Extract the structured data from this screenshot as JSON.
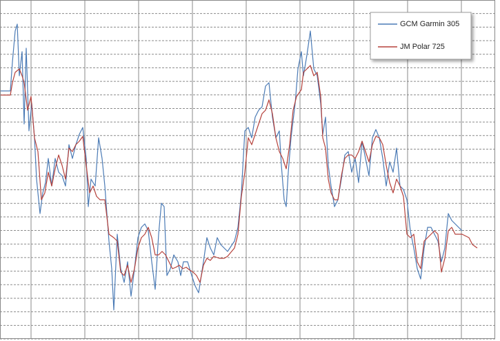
{
  "chart_data": {
    "type": "line",
    "legend": "top-right",
    "grid": true,
    "xlim": [
      0,
      718
    ],
    "xticks": [
      45,
      123,
      201,
      279,
      357,
      435,
      513,
      591,
      669
    ],
    "ylim": [
      0,
      492
    ],
    "yticks": [
      0,
      19.68,
      39.36,
      59.04,
      78.72,
      98.4,
      118.08,
      137.76,
      157.44,
      177.12,
      196.8,
      216.48,
      236.16,
      255.84,
      275.52,
      295.2,
      314.88,
      334.56,
      354.24,
      373.92,
      393.6,
      413.28,
      432.96,
      452.64,
      472.32,
      492
    ],
    "series": [
      {
        "name": "GCM Garmin 305",
        "color": "#4a7ab5",
        "x": [
          0,
          15,
          18,
          22,
          25,
          28,
          32,
          35,
          38,
          42,
          46,
          50,
          53,
          58,
          62,
          66,
          70,
          75,
          80,
          85,
          90,
          95,
          100,
          105,
          110,
          115,
          120,
          125,
          128,
          132,
          138,
          143,
          148,
          152,
          158,
          162,
          165,
          170,
          175,
          180,
          185,
          190,
          195,
          200,
          205,
          210,
          215,
          220,
          225,
          230,
          234,
          238,
          242,
          247,
          252,
          258,
          262,
          266,
          272,
          278,
          283,
          288,
          295,
          300,
          305,
          310,
          315,
          320,
          325,
          330,
          340,
          345,
          350,
          355,
          360,
          365,
          370,
          375,
          380,
          385,
          390,
          395,
          400,
          405,
          408,
          412,
          415,
          418,
          422,
          428,
          432,
          437,
          440,
          445,
          450,
          455,
          460,
          465,
          468,
          472,
          476,
          480,
          485,
          490,
          495,
          500,
          505,
          510,
          515,
          520,
          525,
          530,
          535,
          540,
          545,
          550,
          555,
          560,
          565,
          570,
          575,
          580,
          585,
          590,
          595,
          600,
          605,
          610,
          615,
          620,
          625,
          630,
          635,
          640,
          645,
          650,
          655,
          660,
          665,
          670
        ],
        "values": [
          360,
          360,
          402,
          447,
          457,
          382,
          417,
          312,
          422,
          302,
          342,
          292,
          232,
          182,
          212,
          227,
          262,
          222,
          262,
          242,
          237,
          222,
          282,
          262,
          282,
          297,
          307,
          262,
          192,
          232,
          222,
          292,
          262,
          222,
          142,
          102,
          42,
          152,
          102,
          82,
          112,
          62,
          102,
          147,
          162,
          167,
          157,
          112,
          72,
          152,
          197,
          192,
          92,
          102,
          122,
          112,
          92,
          112,
          112,
          92,
          77,
          67,
          112,
          147,
          132,
          122,
          147,
          137,
          132,
          127,
          142,
          162,
          212,
          302,
          307,
          292,
          322,
          332,
          337,
          367,
          372,
          322,
          292,
          302,
          252,
          202,
          192,
          242,
          292,
          342,
          392,
          417,
          382,
          412,
          447,
          392,
          382,
          342,
          297,
          322,
          252,
          222,
          192,
          202,
          232,
          267,
          272,
          242,
          262,
          227,
          287,
          262,
          237,
          292,
          304,
          292,
          262,
          222,
          257,
          242,
          277,
          222,
          217,
          202,
          157,
          132,
          102,
          87,
          132,
          162,
          162,
          152,
          142,
          112,
          132,
          182,
          172,
          167,
          162,
          157
        ]
      },
      {
        "name": "JM Polar 725",
        "color": "#b5403a",
        "x": [
          0,
          15,
          18,
          22,
          28,
          32,
          35,
          40,
          45,
          50,
          55,
          60,
          65,
          70,
          75,
          80,
          85,
          90,
          95,
          100,
          105,
          110,
          115,
          120,
          125,
          130,
          135,
          140,
          145,
          152,
          158,
          165,
          170,
          175,
          180,
          185,
          190,
          195,
          200,
          205,
          210,
          215,
          220,
          225,
          230,
          235,
          240,
          245,
          250,
          255,
          260,
          265,
          270,
          275,
          280,
          285,
          290,
          295,
          300,
          305,
          310,
          318,
          325,
          330,
          340,
          345,
          350,
          355,
          360,
          365,
          370,
          375,
          380,
          385,
          390,
          395,
          400,
          405,
          410,
          415,
          420,
          425,
          430,
          437,
          440,
          445,
          450,
          455,
          460,
          465,
          468,
          472,
          476,
          480,
          485,
          490,
          495,
          500,
          505,
          510,
          515,
          520,
          525,
          530,
          535,
          540,
          545,
          550,
          555,
          560,
          565,
          570,
          575,
          580,
          585,
          590,
          595,
          600,
          605,
          610,
          615,
          620,
          625,
          630,
          635,
          640,
          645,
          650,
          655,
          660,
          665,
          670,
          680,
          685,
          692
        ],
        "values": [
          354,
          354,
          372,
          387,
          392,
          382,
          372,
          332,
          352,
          292,
          272,
          202,
          212,
          242,
          222,
          247,
          267,
          252,
          232,
          277,
          272,
          282,
          287,
          294,
          252,
          212,
          222,
          207,
          202,
          202,
          152,
          147,
          142,
          97,
          92,
          107,
          82,
          102,
          132,
          147,
          152,
          162,
          147,
          122,
          122,
          127,
          122,
          112,
          102,
          104,
          107,
          102,
          104,
          100,
          97,
          92,
          82,
          107,
          117,
          114,
          120,
          117,
          117,
          120,
          132,
          152,
          207,
          242,
          292,
          282,
          297,
          312,
          327,
          332,
          347,
          327,
          292,
          272,
          262,
          247,
          282,
          332,
          352,
          362,
          387,
          392,
          397,
          382,
          387,
          352,
          292,
          277,
          232,
          212,
          202,
          202,
          237,
          262,
          267,
          267,
          262,
          272,
          287,
          272,
          257,
          282,
          294,
          292,
          282,
          252,
          227,
          212,
          232,
          222,
          207,
          152,
          147,
          152,
          112,
          102,
          142,
          147,
          152,
          157,
          152,
          97,
          117,
          157,
          162,
          152,
          152,
          152,
          147,
          137,
          132
        ]
      }
    ]
  }
}
